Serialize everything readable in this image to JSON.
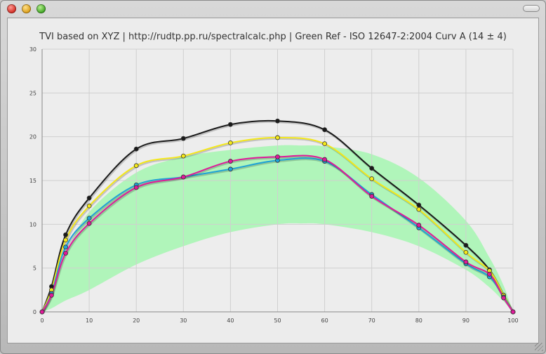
{
  "window": {
    "close_icon": "close-icon",
    "minimize_icon": "minimize-icon",
    "zoom_icon": "zoom-icon",
    "toolbar_toggle_icon": "toolbar-toggle-icon"
  },
  "chart_data": {
    "type": "line",
    "title": "TVI based on XYZ | http://rudtp.pp.ru/spectralcalc.php | Green Ref - ISO 12647-2:2004 Curv A (14 ± 4)",
    "xlabel": "",
    "ylabel": "",
    "xlim": [
      0,
      100
    ],
    "ylim": [
      0,
      30
    ],
    "x_ticks": [
      0,
      10,
      20,
      30,
      40,
      50,
      60,
      70,
      80,
      90,
      100
    ],
    "y_ticks": [
      0,
      5,
      10,
      15,
      20,
      25,
      30
    ],
    "grid": true,
    "legend": "none",
    "tolerance_band": {
      "color": "#a8f5b4",
      "x": [
        0,
        2,
        5,
        10,
        20,
        30,
        40,
        50,
        55,
        60,
        70,
        80,
        90,
        95,
        98,
        100
      ],
      "upper": [
        0,
        2.6,
        6.5,
        11.4,
        15.9,
        17.7,
        18.5,
        19.0,
        19.0,
        18.9,
        18.0,
        15.3,
        10.4,
        6.2,
        3.0,
        0
      ],
      "lower": [
        0,
        0.4,
        1.3,
        2.5,
        5.4,
        7.5,
        9.1,
        10.0,
        10.1,
        10.0,
        9.1,
        7.5,
        4.8,
        2.8,
        1.2,
        0
      ]
    },
    "series": [
      {
        "color": "#1a1a1a",
        "x": [
          0,
          2,
          5,
          10,
          20,
          30,
          40,
          50,
          60,
          70,
          80,
          90,
          95,
          98,
          100
        ],
        "values": [
          0,
          2.9,
          8.8,
          13.0,
          18.6,
          19.8,
          21.4,
          21.8,
          20.8,
          16.4,
          12.2,
          7.6,
          4.8,
          1.9,
          0
        ]
      },
      {
        "color": "#f4e81a",
        "x": [
          0,
          2,
          5,
          10,
          20,
          30,
          40,
          50,
          60,
          70,
          80,
          90,
          95,
          98,
          100
        ],
        "values": [
          0,
          2.5,
          8.2,
          12.1,
          16.7,
          17.8,
          19.3,
          19.9,
          19.2,
          15.2,
          11.7,
          6.8,
          4.7,
          1.9,
          0
        ]
      },
      {
        "color": "#1fa3d6",
        "x": [
          0,
          2,
          5,
          10,
          20,
          30,
          40,
          50,
          60,
          70,
          80,
          90,
          95,
          98,
          100
        ],
        "values": [
          0,
          2.1,
          7.4,
          10.7,
          14.5,
          15.4,
          16.3,
          17.3,
          17.2,
          13.4,
          9.6,
          5.5,
          4.0,
          1.7,
          0
        ]
      },
      {
        "color": "#e0199a",
        "x": [
          0,
          2,
          5,
          10,
          20,
          30,
          40,
          50,
          60,
          70,
          80,
          90,
          95,
          98,
          100
        ],
        "values": [
          0,
          1.9,
          6.7,
          10.1,
          14.2,
          15.4,
          17.2,
          17.7,
          17.4,
          13.2,
          9.9,
          5.7,
          4.3,
          1.6,
          0
        ]
      }
    ]
  }
}
